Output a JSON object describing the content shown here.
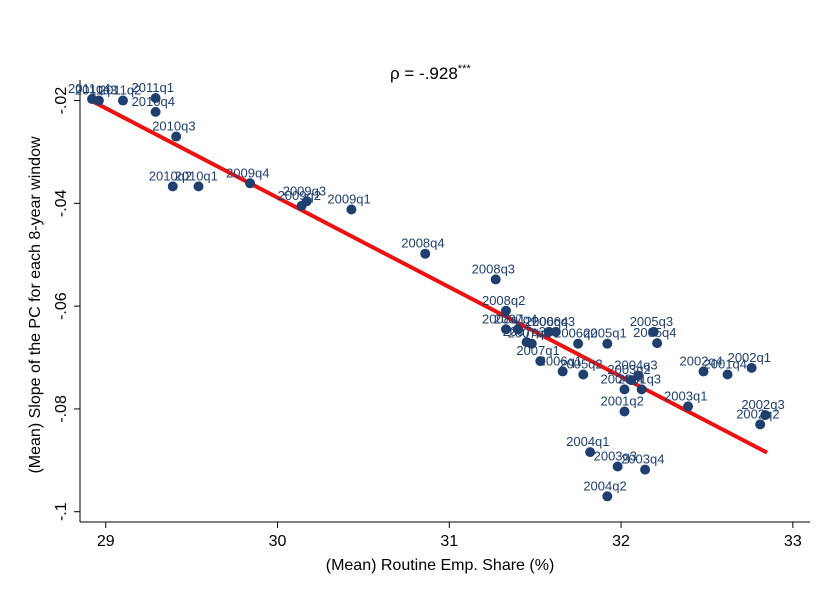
{
  "chart_data": {
    "type": "scatter",
    "title": "",
    "annotation": "ρ = -.928",
    "annotation_superscript": "***",
    "xlabel": "(Mean) Routine Emp. Share (%)",
    "ylabel": "(Mean) Slope of the PC for each 8-year window",
    "xlim": [
      28.85,
      33.1
    ],
    "ylim": [
      -0.102,
      -0.016
    ],
    "xticks": [
      29,
      30,
      31,
      32,
      33
    ],
    "xtick_labels": [
      "29",
      "30",
      "31",
      "32",
      "33"
    ],
    "yticks": [
      -0.02,
      -0.04,
      -0.06,
      -0.08,
      -0.1
    ],
    "ytick_labels": [
      "-.02",
      "-.04",
      "-.06",
      "-.08",
      "-.1"
    ],
    "marker_color": "#1f3f6e",
    "label_color": "#1f3f6e",
    "fit_color": "#ee1111",
    "fit_line": {
      "x": [
        28.92,
        32.85
      ],
      "y": [
        -0.0201,
        -0.0885
      ]
    },
    "points": [
      {
        "label": "2011q4",
        "x": 28.92,
        "y": -0.0197
      },
      {
        "label": "2011q3",
        "x": 28.96,
        "y": -0.02
      },
      {
        "label": "2011q2",
        "x": 29.1,
        "y": -0.02
      },
      {
        "label": "2011q1",
        "x": 29.29,
        "y": -0.0195
      },
      {
        "label": "2010q4",
        "x": 29.29,
        "y": -0.0222
      },
      {
        "label": "2010q3",
        "x": 29.41,
        "y": -0.027
      },
      {
        "label": "2010q2",
        "x": 29.39,
        "y": -0.0367
      },
      {
        "label": "2010q1",
        "x": 29.54,
        "y": -0.0367
      },
      {
        "label": "2009q4",
        "x": 29.84,
        "y": -0.0361
      },
      {
        "label": "2009q3",
        "x": 30.17,
        "y": -0.0396
      },
      {
        "label": "2009q2",
        "x": 30.14,
        "y": -0.0405
      },
      {
        "label": "2009q1",
        "x": 30.43,
        "y": -0.0412
      },
      {
        "label": "2008q4",
        "x": 30.86,
        "y": -0.0498
      },
      {
        "label": "2008q3",
        "x": 31.27,
        "y": -0.0548
      },
      {
        "label": "2008q2",
        "x": 31.33,
        "y": -0.0609
      },
      {
        "label": "2008q1",
        "x": 31.33,
        "y": -0.0645
      },
      {
        "label": "2007q4",
        "x": 31.4,
        "y": -0.0645
      },
      {
        "label": "2007q3",
        "x": 31.45,
        "y": -0.067
      },
      {
        "label": "2007q2",
        "x": 31.48,
        "y": -0.0673
      },
      {
        "label": "2007q1",
        "x": 31.53,
        "y": -0.0707
      },
      {
        "label": "2006q4",
        "x": 31.58,
        "y": -0.065
      },
      {
        "label": "2006q3",
        "x": 31.62,
        "y": -0.065
      },
      {
        "label": "2006q2",
        "x": 31.75,
        "y": -0.0673
      },
      {
        "label": "2006q1",
        "x": 31.66,
        "y": -0.0727
      },
      {
        "label": "2005q4",
        "x": 32.21,
        "y": -0.0672
      },
      {
        "label": "2005q3",
        "x": 32.19,
        "y": -0.065
      },
      {
        "label": "2005q2",
        "x": 31.78,
        "y": -0.0733
      },
      {
        "label": "2005q1",
        "x": 31.92,
        "y": -0.0673
      },
      {
        "label": "2004q4",
        "x": 32.02,
        "y": -0.0762
      },
      {
        "label": "2004q3",
        "x": 32.1,
        "y": -0.0735
      },
      {
        "label": "2004q2",
        "x": 31.92,
        "y": -0.097
      },
      {
        "label": "2004q1",
        "x": 31.82,
        "y": -0.0884
      },
      {
        "label": "2003q4",
        "x": 32.14,
        "y": -0.0918
      },
      {
        "label": "2003q3",
        "x": 31.98,
        "y": -0.0912
      },
      {
        "label": "2003q2",
        "x": 32.06,
        "y": -0.0744
      },
      {
        "label": "2003q1",
        "x": 32.39,
        "y": -0.0795
      },
      {
        "label": "2002q4",
        "x": 32.48,
        "y": -0.0727
      },
      {
        "label": "2002q3",
        "x": 32.84,
        "y": -0.0812
      },
      {
        "label": "2002q2",
        "x": 32.81,
        "y": -0.083
      },
      {
        "label": "2002q1",
        "x": 32.76,
        "y": -0.072
      },
      {
        "label": "2001q4",
        "x": 32.62,
        "y": -0.0733
      },
      {
        "label": "2001q3",
        "x": 32.12,
        "y": -0.0762
      },
      {
        "label": "2001q2",
        "x": 32.02,
        "y": -0.0805
      }
    ]
  }
}
